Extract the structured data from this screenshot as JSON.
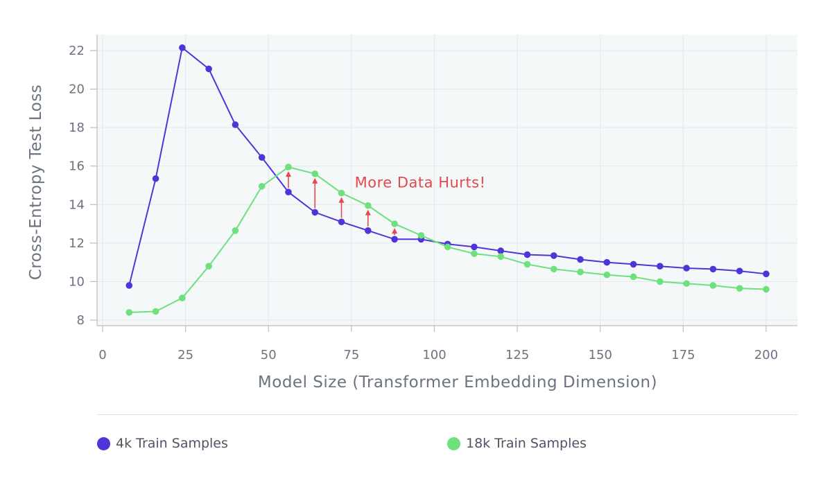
{
  "chart_data": {
    "type": "line",
    "xlabel": "Model Size (Transformer Embedding Dimension)",
    "ylabel": "Cross-Entropy Test Loss",
    "xlim": [
      0,
      200
    ],
    "ylim": [
      7.5,
      23
    ],
    "xticks": [
      0,
      25,
      50,
      75,
      100,
      125,
      150,
      175,
      200
    ],
    "yticks": [
      8,
      10,
      12,
      14,
      16,
      18,
      20,
      22
    ],
    "grid": true,
    "legend_position": "bottom",
    "x": [
      8,
      16,
      24,
      32,
      40,
      48,
      56,
      64,
      72,
      80,
      88,
      96,
      104,
      112,
      120,
      128,
      136,
      144,
      152,
      160,
      168,
      176,
      184,
      192,
      200
    ],
    "series": [
      {
        "name": "4k Train Samples",
        "color": "#4f35d8",
        "values": [
          9.8,
          15.35,
          22.15,
          21.05,
          18.15,
          16.45,
          14.65,
          13.6,
          13.1,
          12.65,
          12.2,
          12.2,
          11.95,
          11.8,
          11.6,
          11.4,
          11.35,
          11.15,
          11.0,
          10.9,
          10.8,
          10.7,
          10.65,
          10.55,
          10.4
        ]
      },
      {
        "name": "18k Train Samples",
        "color": "#6ee07e",
        "values": [
          8.4,
          8.45,
          9.15,
          10.8,
          12.65,
          14.95,
          15.95,
          15.6,
          14.6,
          13.95,
          13.0,
          12.4,
          11.8,
          11.45,
          11.3,
          10.9,
          10.65,
          10.5,
          10.35,
          10.25,
          10.0,
          9.9,
          9.8,
          9.65,
          9.6
        ]
      }
    ],
    "annotation": {
      "text": "More Data Hurts!",
      "color": "#e5484d",
      "x": 76,
      "y": 14.9,
      "arrows_at_x": [
        56,
        64,
        72,
        80,
        88
      ]
    }
  }
}
